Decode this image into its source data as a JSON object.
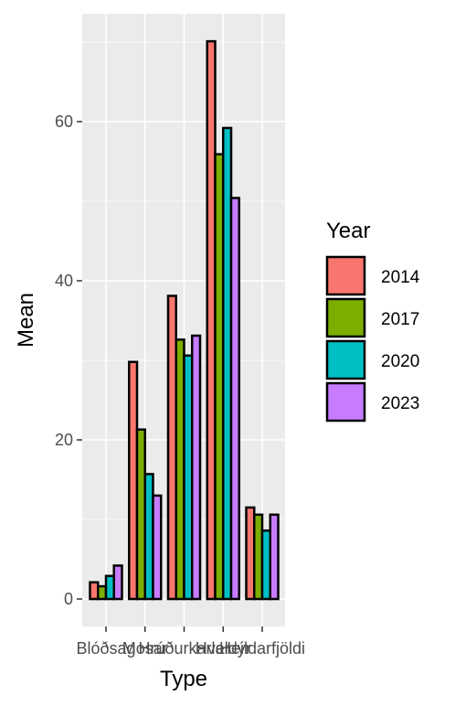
{
  "chart_data": {
    "type": "bar",
    "xlabel": "Type",
    "ylabel": "Mean",
    "categories": [
      "Blóðsag",
      "Mosar",
      "Hrúðurkarlar",
      "Hveldýr",
      "Heildarfjöldi"
    ],
    "series": [
      {
        "name": "2014",
        "values": [
          2.1,
          29.8,
          38.1,
          70.1,
          11.5
        ]
      },
      {
        "name": "2017",
        "values": [
          1.6,
          21.3,
          32.6,
          55.9,
          10.6
        ]
      },
      {
        "name": "2020",
        "values": [
          2.9,
          15.7,
          30.6,
          59.2,
          8.6
        ]
      },
      {
        "name": "2023",
        "values": [
          4.2,
          13.0,
          33.1,
          50.4,
          10.6
        ]
      }
    ],
    "yticks": [
      0,
      20,
      40,
      60
    ],
    "ytick_labels": [
      "0",
      "20",
      "40",
      "60"
    ],
    "ylim": [
      -3.5,
      73.6
    ],
    "grid": true,
    "legend": {
      "title": "Year",
      "position": "right"
    },
    "colors": {
      "2014": "#F8766D",
      "2017": "#7CAE00",
      "2020": "#00BFC4",
      "2023": "#C77CFF",
      "panel": "#EBEBEB",
      "grid": "#FFFFFF"
    }
  }
}
